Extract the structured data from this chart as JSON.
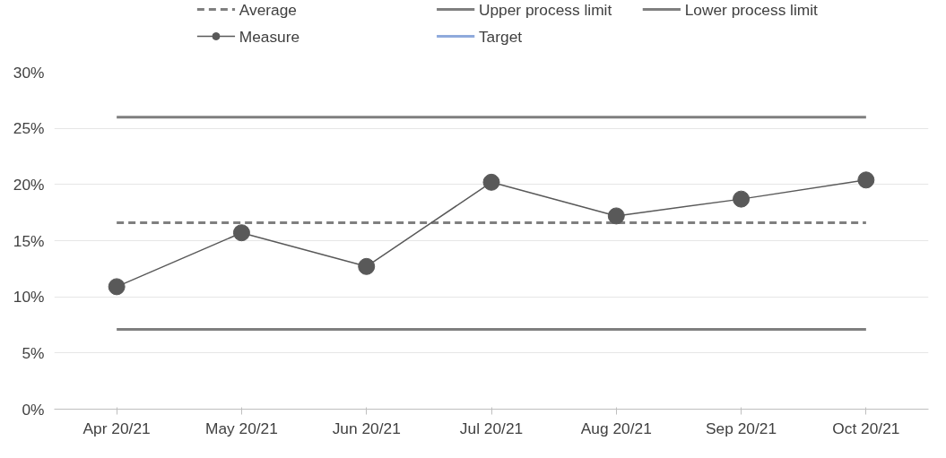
{
  "chart_data": {
    "type": "line",
    "categories": [
      "Apr 20/21",
      "May 20/21",
      "Jun 20/21",
      "Jul 20/21",
      "Aug 20/21",
      "Sep 20/21",
      "Oct 20/21"
    ],
    "series": [
      {
        "name": "Average",
        "color": "#7f7f7f",
        "line_style": "dashed",
        "marker": "none",
        "values": [
          16.6,
          16.6,
          16.6,
          16.6,
          16.6,
          16.6,
          16.6
        ]
      },
      {
        "name": "Upper process limit",
        "color": "#7f7f7f",
        "line_style": "solid",
        "marker": "none",
        "values": [
          26,
          26,
          26,
          26,
          26,
          26,
          26
        ]
      },
      {
        "name": "Lower process limit",
        "color": "#7f7f7f",
        "line_style": "solid",
        "marker": "none",
        "values": [
          7.1,
          7.1,
          7.1,
          7.1,
          7.1,
          7.1,
          7.1
        ]
      },
      {
        "name": "Measure",
        "color": "#595959",
        "line_style": "solid",
        "marker": "circle",
        "values": [
          10.9,
          15.7,
          12.7,
          20.2,
          17.2,
          18.7,
          20.4
        ]
      },
      {
        "name": "Target",
        "color": "#8faadc",
        "line_style": "solid",
        "marker": "none",
        "values": [
          null,
          null,
          null,
          null,
          null,
          null,
          null
        ]
      }
    ],
    "ylim": [
      0,
      30
    ],
    "yticks": [
      {
        "value": 0,
        "label": "0%"
      },
      {
        "value": 5,
        "label": "5%"
      },
      {
        "value": 10,
        "label": "10%"
      },
      {
        "value": 15,
        "label": "15%"
      },
      {
        "value": 20,
        "label": "20%"
      },
      {
        "value": 25,
        "label": "25%"
      },
      {
        "value": 30,
        "label": "30%"
      }
    ],
    "grid": "y",
    "legend": "top"
  }
}
